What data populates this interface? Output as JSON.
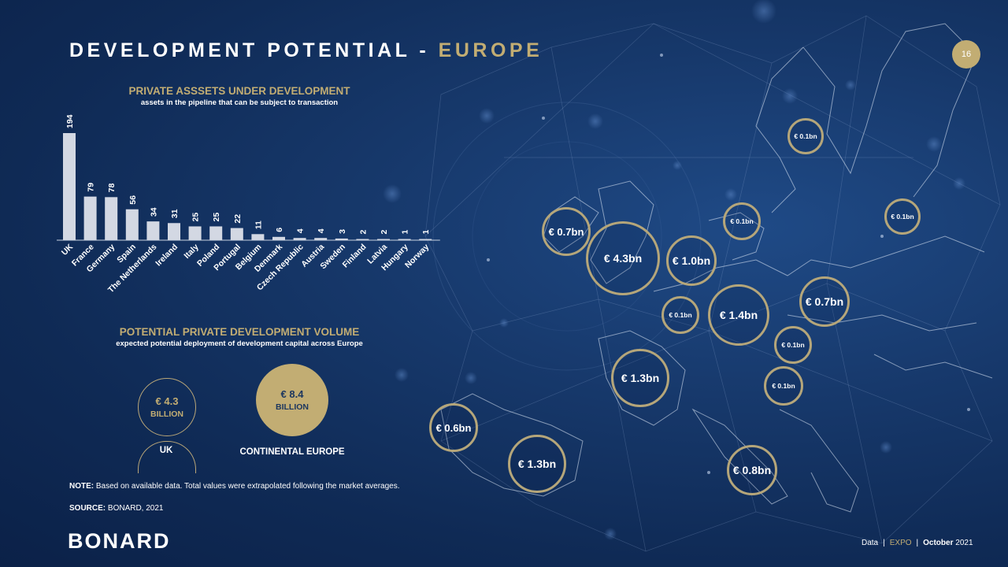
{
  "header": {
    "title_main": "DEVELOPMENT POTENTIAL - ",
    "title_accent": "EUROPE",
    "page_number": "16"
  },
  "section1": {
    "title": "PRIVATE ASSSETS UNDER DEVELOPMENT",
    "subtitle": "assets in the pipeline that can be subject to transaction"
  },
  "chart_data": {
    "type": "bar",
    "categories": [
      "UK",
      "France",
      "Germany",
      "Spain",
      "The Netherlands",
      "Ireland",
      "Italy",
      "Poland",
      "Portugal",
      "Belgium",
      "Denmark",
      "Czech Republic",
      "Austria",
      "Sweden",
      "Finland",
      "Latvia",
      "Hungary",
      "Norway"
    ],
    "values": [
      194,
      79,
      78,
      56,
      34,
      31,
      25,
      25,
      22,
      11,
      6,
      4,
      4,
      3,
      2,
      2,
      1,
      1
    ],
    "title": "PRIVATE ASSSETS UNDER DEVELOPMENT",
    "subtitle": "assets in the pipeline that can be subject to transaction",
    "xlabel": "",
    "ylabel": "",
    "ylim": [
      0,
      194
    ],
    "grid": false,
    "legend": "none",
    "bar_color": "#d3d8e3"
  },
  "section2": {
    "title": "POTENTIAL  PRIVATE DEVELOPMENT VOLUME",
    "subtitle": "expected potential deployment of development capital across Europe"
  },
  "volume": {
    "uk": {
      "value": "€ 4.3",
      "unit": "BILLION",
      "label": "UK"
    },
    "continental": {
      "value": "€ 8.4",
      "unit": "BILLION",
      "label": "CONTINENTAL  EUROPE"
    }
  },
  "note": {
    "prefix": "NOTE:",
    "text": " Based on available data. Total values were extrapolated following  the market averages."
  },
  "source": {
    "prefix": "SOURCE:",
    "text": " BONARD, 2021"
  },
  "logo": "BONARD",
  "footer": {
    "data": "Data",
    "sep": "|",
    "expo": "EXPO",
    "date_bold": "October",
    "year": " 2021"
  },
  "map_circles": [
    {
      "label": "€ 0.1bn"
    },
    {
      "label": "€ 0.1bn"
    },
    {
      "label": "€ 0.1bn"
    },
    {
      "label": "€ 0.7bn"
    },
    {
      "label": "€ 4.3bn"
    },
    {
      "label": "€ 1.0bn"
    },
    {
      "label": "€ 0.1bn"
    },
    {
      "label": "€ 1.4bn"
    },
    {
      "label": "€ 0.7bn"
    },
    {
      "label": "€ 0.1bn"
    },
    {
      "label": "€ 1.3bn"
    },
    {
      "label": "€ 0.1bn"
    },
    {
      "label": "€ 0.6bn"
    },
    {
      "label": "€ 1.3bn"
    },
    {
      "label": "€ 0.8bn"
    }
  ],
  "colors": {
    "accent": "#c2ad73",
    "background": "#12305e",
    "bar": "#d3d8e3"
  }
}
